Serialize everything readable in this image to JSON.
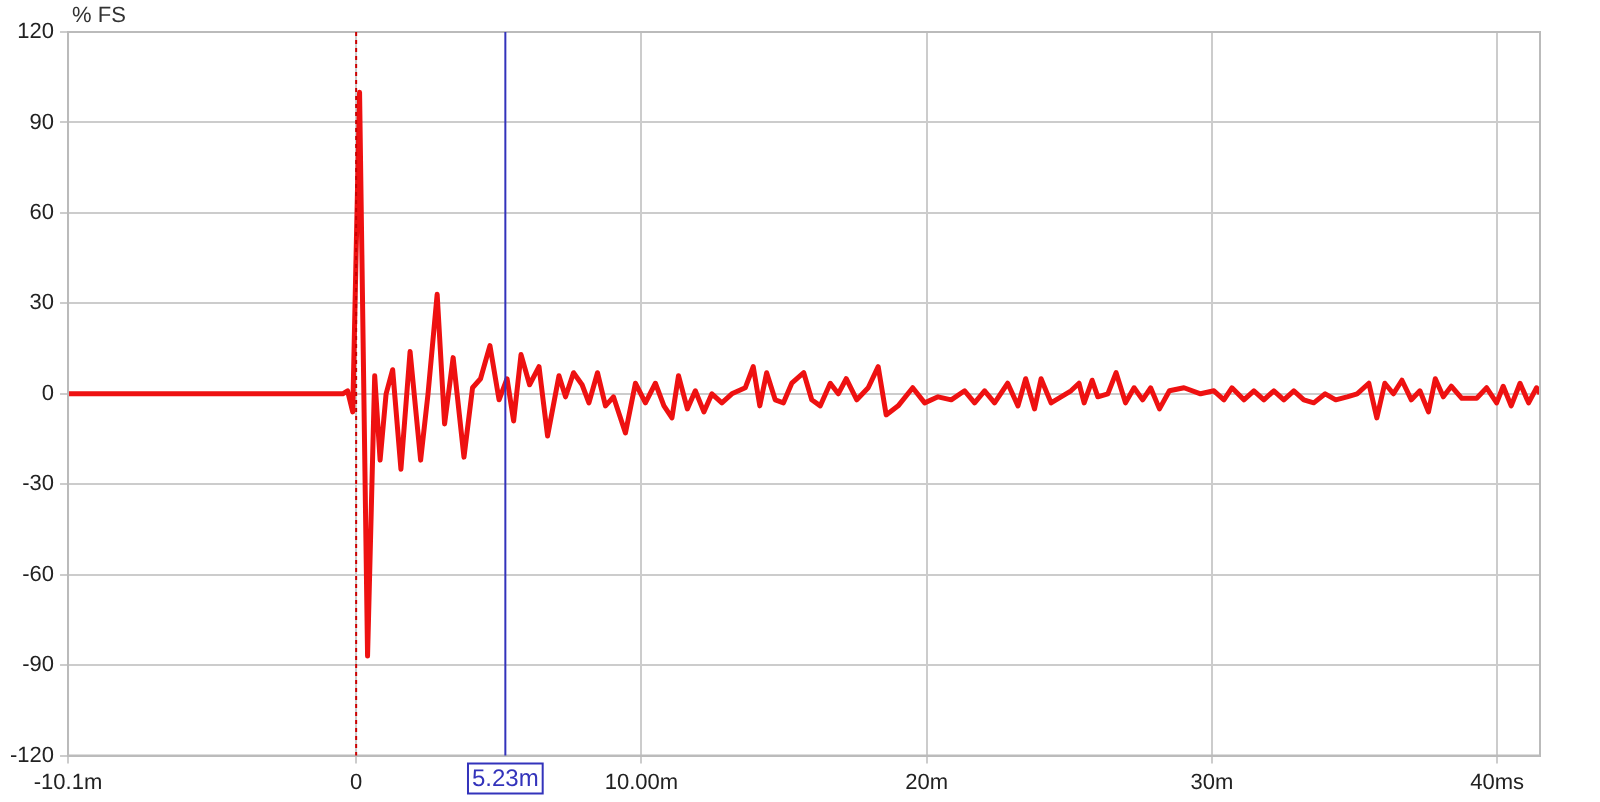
{
  "chart_data": {
    "type": "line",
    "ylabel": "% FS",
    "xlim": [
      -10.1,
      41.5
    ],
    "ylim": [
      -120,
      120
    ],
    "xticks": [
      {
        "value": -10.1,
        "label": "-10.1m"
      },
      0,
      {
        "value": 10,
        "label": "10.00m"
      },
      {
        "value": 20,
        "label": "20m"
      },
      {
        "value": 30,
        "label": "30m"
      },
      {
        "value": 40,
        "label": "40ms"
      }
    ],
    "yticks": [
      -120,
      -90,
      -60,
      -30,
      0,
      30,
      60,
      90,
      120
    ],
    "grid": true,
    "legend": false,
    "marker": "none",
    "line_style": "solid",
    "ref_lines": [
      {
        "axis": "x",
        "value": 0,
        "color": "#cc0000",
        "line_style": "dotted"
      },
      {
        "axis": "x",
        "value": 5.23,
        "label": "5.23m",
        "color": "#3333bb",
        "line_style": "solid"
      }
    ],
    "series": [
      {
        "color": "#ee1111",
        "x": [
          -10.1,
          -0.47,
          -0.3,
          -0.12,
          0.12,
          0.4,
          0.65,
          0.84,
          1.05,
          1.28,
          1.57,
          1.89,
          2.26,
          2.52,
          2.84,
          3.1,
          3.4,
          3.78,
          4.08,
          4.36,
          4.69,
          5.01,
          5.29,
          5.52,
          5.78,
          6.08,
          6.41,
          6.71,
          7.11,
          7.34,
          7.62,
          7.92,
          8.16,
          8.46,
          8.74,
          9.02,
          9.44,
          9.79,
          10.14,
          10.49,
          10.79,
          11.07,
          11.3,
          11.61,
          11.89,
          12.19,
          12.47,
          12.82,
          13.17,
          13.64,
          13.92,
          14.15,
          14.39,
          14.69,
          14.98,
          15.27,
          15.69,
          15.97,
          16.27,
          16.62,
          16.9,
          17.18,
          17.55,
          17.95,
          18.3,
          18.58,
          19.0,
          19.51,
          19.93,
          20.4,
          20.86,
          21.33,
          21.68,
          22.03,
          22.38,
          22.84,
          23.2,
          23.47,
          23.78,
          24.01,
          24.36,
          24.71,
          25.06,
          25.34,
          25.52,
          25.8,
          26.0,
          26.35,
          26.64,
          26.97,
          27.27,
          27.57,
          27.85,
          28.16,
          28.51,
          29.02,
          29.6,
          30.07,
          30.42,
          30.7,
          31.12,
          31.47,
          31.82,
          32.17,
          32.52,
          32.87,
          33.22,
          33.57,
          33.97,
          34.34,
          34.74,
          35.09,
          35.5,
          35.78,
          36.06,
          36.36,
          36.66,
          36.99,
          37.29,
          37.59,
          37.83,
          38.11,
          38.39,
          38.76,
          39.28,
          39.63,
          39.98,
          40.21,
          40.49,
          40.8,
          41.1,
          41.38,
          41.5
        ],
        "values": [
          0,
          0,
          1,
          -6,
          100,
          -87,
          6,
          -22,
          0,
          8,
          -25,
          14,
          -22,
          0,
          33,
          -10,
          12,
          -21,
          2,
          5,
          16,
          -2,
          5,
          -9,
          13,
          3,
          9,
          -14,
          6,
          -1,
          7,
          3,
          -3,
          7,
          -4,
          -1,
          -13,
          3.5,
          -3,
          3.5,
          -4,
          -8,
          6,
          -5,
          1,
          -6,
          0,
          -3,
          0,
          2,
          9,
          -4,
          7,
          -2,
          -3,
          3.5,
          7,
          -2,
          -4,
          3.5,
          0,
          5,
          -2,
          2,
          9,
          -7,
          -4,
          2,
          -3,
          -1,
          -2,
          1,
          -3,
          1,
          -3,
          3.5,
          -4,
          5,
          -5,
          5,
          -3,
          -1,
          1,
          3.5,
          -3,
          4.5,
          -1,
          0,
          7,
          -3,
          2,
          -2,
          2,
          -5,
          1,
          2,
          0,
          1,
          -2,
          2,
          -2,
          1,
          -2,
          1,
          -2,
          1,
          -2,
          -3,
          0,
          -2,
          -1,
          0,
          3.5,
          -8,
          3.5,
          0,
          4.5,
          -2,
          1,
          -6,
          5,
          -1,
          2.5,
          -1.5,
          -1.5,
          2,
          -3,
          2.5,
          -4,
          3.5,
          -3,
          2,
          0
        ]
      }
    ]
  }
}
